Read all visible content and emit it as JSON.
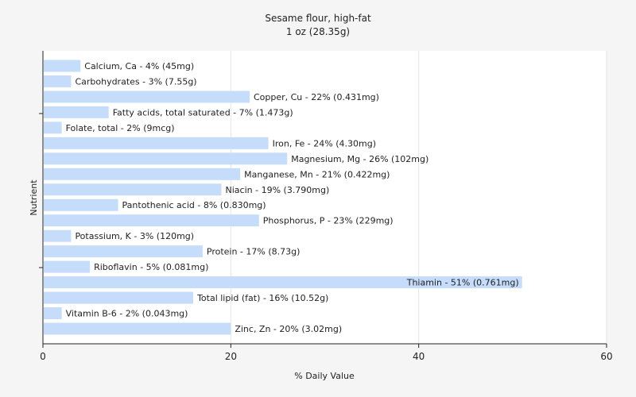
{
  "chart_data": {
    "type": "bar",
    "orientation": "horizontal",
    "title": "Sesame flour, high-fat",
    "subtitle": "1 oz (28.35g)",
    "xlabel": "% Daily Value",
    "ylabel": "Nutrient",
    "xlim": [
      0,
      60
    ],
    "xticks": [
      0,
      20,
      40,
      60
    ],
    "grid": true,
    "bar_color": "#c6dcfb",
    "categories": [
      "Calcium, Ca",
      "Carbohydrates",
      "Copper, Cu",
      "Fatty acids, total saturated",
      "Folate, total",
      "Iron, Fe",
      "Magnesium, Mg",
      "Manganese, Mn",
      "Niacin",
      "Pantothenic acid",
      "Phosphorus, P",
      "Potassium, K",
      "Protein",
      "Riboflavin",
      "Thiamin",
      "Total lipid (fat)",
      "Vitamin B-6",
      "Zinc, Zn"
    ],
    "values": [
      4,
      3,
      22,
      7,
      2,
      24,
      26,
      21,
      19,
      8,
      23,
      3,
      17,
      5,
      51,
      16,
      2,
      20
    ],
    "labels": [
      "Calcium, Ca - 4% (45mg)",
      "Carbohydrates - 3% (7.55g)",
      "Copper, Cu - 22% (0.431mg)",
      "Fatty acids, total saturated - 7% (1.473g)",
      "Folate, total - 2% (9mcg)",
      "Iron, Fe - 24% (4.30mg)",
      "Magnesium, Mg - 26% (102mg)",
      "Manganese, Mn - 21% (0.422mg)",
      "Niacin - 19% (3.790mg)",
      "Pantothenic acid - 8% (0.830mg)",
      "Phosphorus, P - 23% (229mg)",
      "Potassium, K - 3% (120mg)",
      "Protein - 17% (8.73g)",
      "Riboflavin - 5% (0.081mg)",
      "Thiamin - 51% (0.761mg)",
      "Total lipid (fat) - 16% (10.52g)",
      "Vitamin B-6 - 2% (0.043mg)",
      "Zinc, Zn - 20% (3.02mg)"
    ]
  }
}
